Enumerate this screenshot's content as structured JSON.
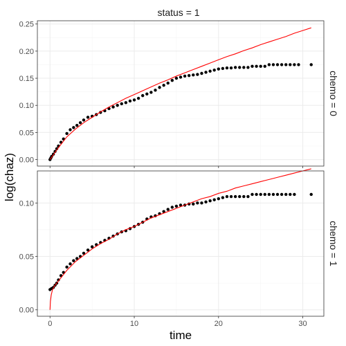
{
  "chart_data": {
    "type": "scatter",
    "title": "",
    "xlabel": "time",
    "ylabel": "log(chaz)",
    "column_strip": "status = 1",
    "grid": true,
    "legend": "none",
    "colors": {
      "points": "#000000",
      "fit_line": "#ff0000",
      "grid": "#ebebeb",
      "panel_border": "#333333"
    },
    "xlim": [
      -1.5,
      32.5
    ],
    "x_ticks": [
      0,
      10,
      20,
      30
    ],
    "panels": [
      {
        "row_strip": "chemo = 0",
        "ylim": [
          -0.012,
          0.256
        ],
        "y_ticks": [
          0.0,
          0.05,
          0.1,
          0.15,
          0.2,
          0.25
        ],
        "y_tick_labels": [
          "0.00",
          "0.05",
          "0.10",
          "0.15",
          "0.20",
          "0.25"
        ],
        "points": {
          "x": [
            0,
            0.1,
            0.2,
            0.4,
            0.6,
            0.8,
            1.0,
            1.3,
            1.6,
            2.0,
            2.4,
            2.8,
            3.2,
            3.6,
            4.0,
            4.5,
            5.0,
            5.5,
            6.0,
            6.5,
            7.0,
            7.5,
            8.0,
            8.5,
            9.0,
            9.5,
            10.0,
            10.5,
            11.0,
            11.5,
            12.0,
            12.5,
            13.0,
            13.5,
            14.0,
            14.5,
            15.0,
            15.5,
            16.0,
            16.5,
            17.0,
            17.5,
            18.0,
            18.5,
            19.0,
            19.5,
            20.0,
            20.5,
            21.0,
            21.5,
            22.0,
            22.5,
            23.0,
            23.5,
            24.0,
            24.5,
            25.0,
            25.5,
            26.0,
            26.5,
            27.0,
            27.5,
            28.0,
            28.5,
            29.0,
            29.5,
            31.0
          ],
          "y": [
            0.0,
            0.003,
            0.006,
            0.01,
            0.015,
            0.02,
            0.025,
            0.032,
            0.038,
            0.048,
            0.055,
            0.059,
            0.063,
            0.068,
            0.073,
            0.078,
            0.08,
            0.083,
            0.087,
            0.09,
            0.094,
            0.097,
            0.1,
            0.103,
            0.105,
            0.108,
            0.11,
            0.113,
            0.118,
            0.121,
            0.124,
            0.128,
            0.133,
            0.137,
            0.141,
            0.146,
            0.15,
            0.152,
            0.154,
            0.155,
            0.156,
            0.157,
            0.159,
            0.161,
            0.163,
            0.165,
            0.167,
            0.168,
            0.169,
            0.169,
            0.17,
            0.17,
            0.17,
            0.17,
            0.172,
            0.172,
            0.172,
            0.172,
            0.175,
            0.175,
            0.175,
            0.175,
            0.175,
            0.175,
            0.175,
            0.175,
            0.175
          ]
        },
        "fit": {
          "x": [
            0,
            1,
            2,
            3,
            4,
            5,
            6,
            7,
            8,
            9,
            10,
            11,
            12,
            13,
            14,
            15,
            16,
            17,
            18,
            19,
            20,
            21,
            22,
            23,
            24,
            25,
            26,
            27,
            28,
            29,
            30,
            31
          ],
          "y": [
            0.0,
            0.022,
            0.042,
            0.056,
            0.068,
            0.078,
            0.088,
            0.097,
            0.105,
            0.113,
            0.12,
            0.127,
            0.134,
            0.141,
            0.147,
            0.154,
            0.16,
            0.166,
            0.172,
            0.178,
            0.184,
            0.19,
            0.195,
            0.201,
            0.206,
            0.212,
            0.217,
            0.222,
            0.227,
            0.233,
            0.238,
            0.243
          ]
        }
      },
      {
        "row_strip": "chemo = 1",
        "ylim": [
          -0.006,
          0.13
        ],
        "y_ticks": [
          0.0,
          0.05,
          0.1
        ],
        "y_tick_labels": [
          "0.00",
          "0.05",
          "0.10"
        ],
        "points": {
          "x": [
            0,
            0.2,
            0.4,
            0.6,
            0.8,
            1.0,
            1.3,
            1.6,
            2.0,
            2.4,
            2.8,
            3.2,
            3.6,
            4.0,
            4.5,
            5.0,
            5.5,
            6.0,
            6.5,
            7.0,
            7.5,
            8.0,
            8.5,
            9.0,
            9.5,
            10.0,
            10.5,
            11.0,
            11.5,
            12.0,
            12.5,
            13.0,
            13.5,
            14.0,
            14.5,
            15.0,
            15.5,
            16.0,
            16.5,
            17.0,
            17.5,
            18.0,
            18.5,
            19.0,
            19.5,
            20.0,
            20.5,
            21.0,
            21.5,
            22.0,
            22.5,
            23.0,
            23.5,
            24.0,
            24.5,
            25.0,
            25.5,
            26.0,
            26.5,
            27.0,
            27.5,
            28.0,
            28.5,
            29.0,
            31.0
          ],
          "y": [
            0.019,
            0.02,
            0.021,
            0.023,
            0.025,
            0.028,
            0.032,
            0.035,
            0.04,
            0.043,
            0.046,
            0.048,
            0.05,
            0.053,
            0.056,
            0.059,
            0.061,
            0.063,
            0.065,
            0.067,
            0.069,
            0.071,
            0.073,
            0.074,
            0.076,
            0.078,
            0.08,
            0.082,
            0.085,
            0.087,
            0.088,
            0.09,
            0.092,
            0.094,
            0.096,
            0.097,
            0.098,
            0.098,
            0.099,
            0.099,
            0.1,
            0.1,
            0.101,
            0.102,
            0.103,
            0.104,
            0.105,
            0.106,
            0.106,
            0.106,
            0.106,
            0.106,
            0.106,
            0.108,
            0.108,
            0.108,
            0.108,
            0.108,
            0.108,
            0.108,
            0.108,
            0.108,
            0.108,
            0.108,
            0.108
          ]
        },
        "fit": {
          "x": [
            0,
            0.05,
            0.15,
            0.3,
            0.5,
            1,
            2,
            3,
            4,
            5,
            6,
            7,
            8,
            9,
            10,
            11,
            12,
            13,
            14,
            15,
            16,
            17,
            18,
            19,
            20,
            21,
            22,
            23,
            24,
            25,
            26,
            27,
            28,
            29,
            30,
            31
          ],
          "y": [
            0.0,
            0.008,
            0.014,
            0.019,
            0.022,
            0.027,
            0.037,
            0.045,
            0.051,
            0.057,
            0.062,
            0.066,
            0.071,
            0.075,
            0.078,
            0.082,
            0.086,
            0.089,
            0.092,
            0.095,
            0.098,
            0.101,
            0.104,
            0.106,
            0.109,
            0.111,
            0.114,
            0.116,
            0.118,
            0.12,
            0.122,
            0.124,
            0.126,
            0.128,
            0.13,
            0.132
          ]
        }
      }
    ]
  }
}
